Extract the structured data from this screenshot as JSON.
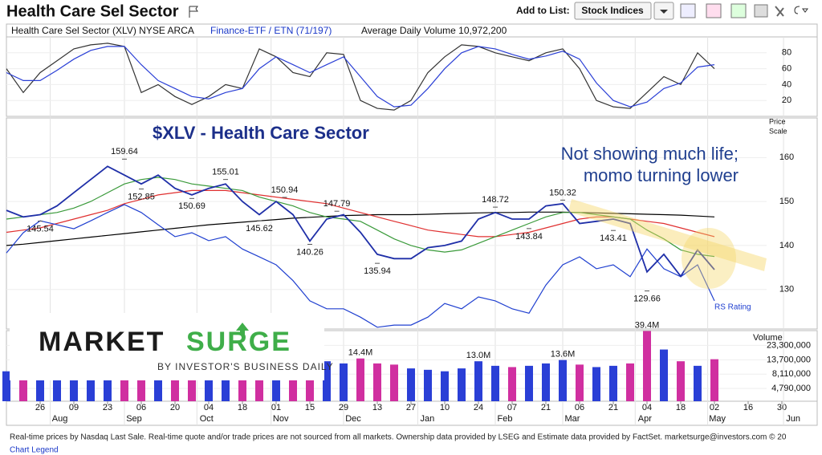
{
  "header": {
    "title": "Health Care Sel Sector",
    "add_to_list": "Add to List:",
    "list_button": "Stock Indices"
  },
  "info": {
    "name": "Health Care Sel Sector  (XLV) NYSE ARCA",
    "group": "Finance-ETF / ETN (71/197)",
    "avg_volume": "Average Daily Volume 10,972,200"
  },
  "footer": {
    "note": "Real-time prices by Nasdaq Last Sale. Real-time quote and/or trade prices are not sourced from all markets. Ownership data provided by LSEG and Estimate data provided by FactSet. marketsurge@investors.com  © 20",
    "legend_link": "Chart Legend"
  },
  "logo": {
    "word1": "MARKET",
    "word2": "SURGE",
    "tagline": "BY INVESTOR'S BUSINESS DAILY"
  },
  "xaxis": {
    "xlim": [
      -2,
      45.5
    ],
    "xticks": [
      {
        "value": 0,
        "label": "26"
      },
      {
        "value": 2,
        "label": "09"
      },
      {
        "value": 4,
        "label": "23"
      },
      {
        "value": 6,
        "label": "06"
      },
      {
        "value": 8,
        "label": "20"
      },
      {
        "value": 10,
        "label": "04"
      },
      {
        "value": 12,
        "label": "18"
      },
      {
        "value": 14,
        "label": "01"
      },
      {
        "value": 16,
        "label": "15"
      },
      {
        "value": 18,
        "label": "29"
      },
      {
        "value": 20,
        "label": "13"
      },
      {
        "value": 22,
        "label": "27"
      },
      {
        "value": 24,
        "label": "10"
      },
      {
        "value": 26,
        "label": "24"
      },
      {
        "value": 28,
        "label": "07"
      },
      {
        "value": 30,
        "label": "21"
      },
      {
        "value": 32,
        "label": "06"
      },
      {
        "value": 34,
        "label": "21"
      },
      {
        "value": 36,
        "label": "04"
      },
      {
        "value": 38,
        "label": "18"
      },
      {
        "value": 40,
        "label": "02"
      },
      {
        "value": 42,
        "label": "16"
      },
      {
        "value": 44,
        "label": "30"
      }
    ],
    "month_ticks": [
      {
        "value": 0.6,
        "label": "Aug"
      },
      {
        "value": 5,
        "label": "Sep"
      },
      {
        "value": 9.3,
        "label": "Oct"
      },
      {
        "value": 13.7,
        "label": "Nov"
      },
      {
        "value": 18,
        "label": "Dec"
      },
      {
        "value": 22.4,
        "label": "Jan"
      },
      {
        "value": 27,
        "label": "Feb"
      },
      {
        "value": 31,
        "label": "Mar"
      },
      {
        "value": 35.3,
        "label": "Apr"
      },
      {
        "value": 39.6,
        "label": "May"
      },
      {
        "value": 44.1,
        "label": "Jun"
      }
    ]
  },
  "chart_data": [
    {
      "type": "line",
      "ylim": [
        0,
        100
      ],
      "yticks": [
        20,
        40,
        60,
        80
      ],
      "x": [
        -2,
        -1,
        0,
        1,
        2,
        3,
        4,
        5,
        6,
        7,
        8,
        9,
        10,
        11,
        12,
        13,
        14,
        15,
        16,
        17,
        18,
        19,
        20,
        21,
        22,
        23,
        24,
        25,
        26,
        27,
        28,
        29,
        30,
        31,
        32,
        33,
        34,
        35,
        36,
        37,
        38,
        39,
        40
      ],
      "series": [
        {
          "color": "#333333",
          "values": [
            60,
            30,
            55,
            70,
            85,
            90,
            92,
            88,
            30,
            40,
            25,
            15,
            25,
            40,
            35,
            85,
            75,
            55,
            50,
            80,
            78,
            20,
            10,
            8,
            20,
            55,
            75,
            90,
            88,
            80,
            75,
            70,
            80,
            85,
            60,
            20,
            12,
            10,
            30,
            50,
            40,
            80,
            60
          ]
        },
        {
          "color": "#2a3fd6",
          "values": [
            55,
            45,
            45,
            58,
            72,
            83,
            88,
            88,
            65,
            45,
            35,
            25,
            22,
            30,
            35,
            60,
            75,
            65,
            55,
            65,
            75,
            50,
            25,
            12,
            14,
            35,
            60,
            80,
            88,
            85,
            78,
            72,
            76,
            82,
            72,
            42,
            20,
            12,
            18,
            35,
            42,
            62,
            65
          ]
        }
      ]
    },
    {
      "type": "line",
      "title": "$XLV - Health Care Sector",
      "annotation_lines": [
        "Not showing much life;",
        "momo turning lower"
      ],
      "axis_label": [
        "Price",
        "Scale"
      ],
      "rs_label": "RS Rating",
      "ylim": [
        121,
        169
      ],
      "yticks": [
        130,
        140,
        150,
        160
      ],
      "x": [
        -2,
        -1,
        0,
        1,
        2,
        3,
        4,
        5,
        6,
        7,
        8,
        9,
        10,
        11,
        12,
        13,
        14,
        15,
        16,
        17,
        18,
        19,
        20,
        21,
        22,
        23,
        24,
        25,
        26,
        27,
        28,
        29,
        30,
        31,
        32,
        33,
        34,
        35,
        36,
        37,
        38,
        39,
        40
      ],
      "series": [
        {
          "color": "#000000",
          "values": [
            140,
            140.3,
            140.7,
            141.1,
            141.5,
            141.9,
            142.3,
            142.7,
            143.1,
            143.5,
            143.9,
            144.3,
            144.7,
            145,
            145.3,
            145.6,
            145.9,
            146.2,
            146.4,
            146.6,
            146.8,
            146.9,
            147,
            147,
            147,
            147.1,
            147.2,
            147.3,
            147.4,
            147.5,
            147.5,
            147.6,
            147.6,
            147.6,
            147.5,
            147.4,
            147.3,
            147.2,
            147.1,
            147,
            146.9,
            146.7,
            146.5
          ]
        },
        {
          "color": "#e03030",
          "values": [
            143,
            143.5,
            144,
            145,
            146,
            147,
            148,
            149.5,
            150.5,
            151.5,
            152,
            152.5,
            152.5,
            152.5,
            152,
            151.5,
            151,
            150.5,
            150,
            149.5,
            148.5,
            147.5,
            146.5,
            145.5,
            144.5,
            143.5,
            143,
            142.5,
            142,
            142,
            142.5,
            143,
            144,
            145,
            146,
            146.5,
            146.5,
            146,
            145.5,
            145,
            144,
            143,
            142
          ]
        },
        {
          "color": "#3a9a3a",
          "values": [
            146,
            146.5,
            147,
            147.5,
            148.5,
            150,
            152,
            154,
            155,
            155.5,
            155,
            154,
            153.5,
            153,
            152.5,
            151,
            150,
            149,
            147.5,
            146.5,
            146,
            145.5,
            143.5,
            141.5,
            140,
            139,
            138.5,
            139,
            140.5,
            142,
            143.5,
            145,
            146.5,
            147.5,
            147.5,
            147,
            146.5,
            146,
            143.5,
            141.5,
            139,
            138,
            137.5
          ]
        },
        {
          "color": "#2040d0",
          "values": [
            138.3,
            142.9,
            145.6,
            144.7,
            143.8,
            145.6,
            147.5,
            149.3,
            147.5,
            144.7,
            142,
            142.9,
            141.1,
            142,
            139.2,
            137.4,
            135.6,
            132,
            127.4,
            125.6,
            125.6,
            123.7,
            121.4,
            121.9,
            121.9,
            123.7,
            126.8,
            125.6,
            128.3,
            127.4,
            125.6,
            124.6,
            131,
            135.6,
            137.4,
            134.7,
            135.6,
            132.9,
            139.2,
            134.7,
            132.9,
            135.6,
            127.4
          ]
        },
        {
          "color": "#1f2fa8",
          "values": [
            148,
            146.5,
            147,
            149,
            152,
            155,
            158,
            156,
            154,
            156,
            153,
            151.5,
            153,
            154,
            150,
            147,
            150,
            147,
            141,
            146,
            147,
            143,
            138,
            137,
            137,
            139.5,
            140,
            141,
            146,
            147.5,
            146,
            146,
            149,
            149.5,
            145,
            145.5,
            146,
            145,
            134,
            138,
            133,
            139,
            134.5
          ]
        }
      ],
      "price_labels": [
        {
          "x": 0,
          "value": 145.54
        },
        {
          "x": 5,
          "value": 159.64
        },
        {
          "x": 6,
          "value": 152.85
        },
        {
          "x": 9,
          "value": 150.69
        },
        {
          "x": 11,
          "value": 155.01
        },
        {
          "x": 13,
          "value": 145.62
        },
        {
          "x": 14.5,
          "value": 150.94
        },
        {
          "x": 16,
          "value": 140.26
        },
        {
          "x": 17.6,
          "value": 147.79
        },
        {
          "x": 20,
          "value": 135.94
        },
        {
          "x": 27,
          "value": 148.72
        },
        {
          "x": 29,
          "value": 143.84
        },
        {
          "x": 31,
          "value": 150.32
        },
        {
          "x": 34,
          "value": 143.41
        },
        {
          "x": 36,
          "value": 129.66
        }
      ]
    },
    {
      "type": "bar",
      "axis_label": "Volume",
      "log_scale": true,
      "up_color": "#2a3fd6",
      "down_color": "#d02fa0",
      "ylim": [
        3000000,
        40000000
      ],
      "yticks": [
        {
          "value": 23300000,
          "label": "23,300,000"
        },
        {
          "value": 13700000,
          "label": "13,700,000"
        },
        {
          "value": 8110000,
          "label": "8,110,000"
        },
        {
          "value": 4790000,
          "label": "4,790,000"
        }
      ],
      "x": [
        -2,
        -1,
        0,
        1,
        2,
        3,
        4,
        5,
        6,
        7,
        8,
        9,
        10,
        11,
        12,
        13,
        14,
        15,
        16,
        17,
        18,
        19,
        20,
        21,
        22,
        23,
        24,
        25,
        26,
        27,
        28,
        29,
        30,
        31,
        32,
        33,
        34,
        35,
        36,
        37,
        38,
        39,
        40
      ],
      "values": [
        9000000,
        10000000,
        8000000,
        8500000,
        9500000,
        8000000,
        9000000,
        11000000,
        9500000,
        8000000,
        9000000,
        8500000,
        10000000,
        9000000,
        9500000,
        11000000,
        10500000,
        12000000,
        12500000,
        13000000,
        12000000,
        14400000,
        12000000,
        11500000,
        10000000,
        9500000,
        9000000,
        10000000,
        13000000,
        11000000,
        10500000,
        11000000,
        12000000,
        13600000,
        11500000,
        10500000,
        11000000,
        12000000,
        39400000,
        20000000,
        13000000,
        11000000,
        14000000
      ],
      "value_labels": [
        null,
        null,
        null,
        null,
        null,
        null,
        null,
        null,
        null,
        null,
        null,
        null,
        null,
        null,
        null,
        null,
        null,
        null,
        null,
        null,
        null,
        "14.4M",
        null,
        null,
        null,
        null,
        null,
        null,
        "13.0M",
        null,
        null,
        null,
        null,
        "13.6M",
        null,
        null,
        null,
        null,
        "39.4M",
        null,
        null,
        null,
        null
      ]
    }
  ]
}
